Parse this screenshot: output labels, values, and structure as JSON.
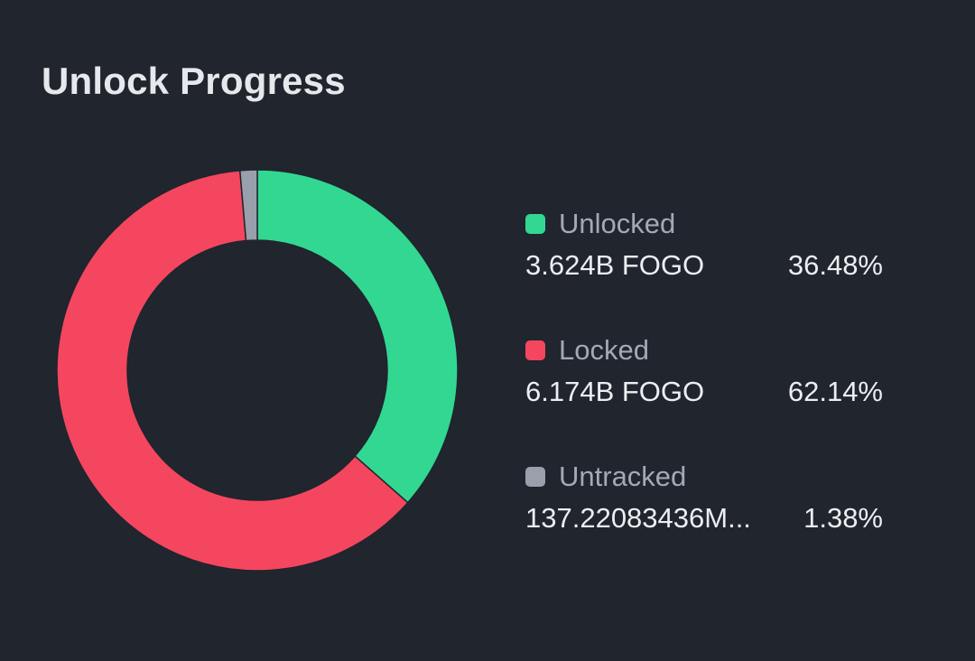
{
  "title": "Unlock Progress",
  "chart_data": {
    "type": "pie",
    "donut": true,
    "legend_position": "right",
    "series": [
      {
        "name": "Unlocked",
        "amount": "3.624B FOGO",
        "percent_label": "36.48%",
        "value": 36.48,
        "color": "#32d892"
      },
      {
        "name": "Locked",
        "amount": "6.174B FOGO",
        "percent_label": "62.14%",
        "value": 62.14,
        "color": "#f5465f"
      },
      {
        "name": "Untracked",
        "amount": "137.22083436M...",
        "percent_label": "1.38%",
        "value": 1.38,
        "color": "#9aa0ab"
      }
    ]
  }
}
